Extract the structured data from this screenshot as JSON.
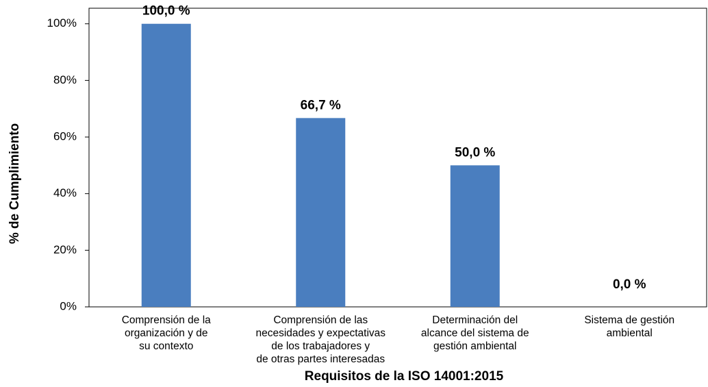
{
  "chart_data": {
    "type": "bar",
    "x_label": "Requisitos de la ISO 14001:2015",
    "y_label": "% de Cumplimiento",
    "categories": [
      "Comprensión de la\norganización y de\nsu contexto",
      "Comprensión de las\nnecesidades y expectativas\nde los trabajadores y\nde otras partes interesadas",
      "Determinación del\nalcance del sistema de\ngestión ambiental",
      "Sistema de gestión\nambiental"
    ],
    "values": [
      100,
      66.7,
      50,
      0
    ],
    "value_labels": [
      "100,0 %",
      "66,7 %",
      "50,0 %",
      "0,0 %"
    ],
    "color": "#4a7ebf",
    "ylim": [
      0,
      105.5
    ],
    "yticks": [
      {
        "value": 0,
        "label": "0%"
      },
      {
        "value": 20,
        "label": "20%"
      },
      {
        "value": 40,
        "label": "40%"
      },
      {
        "value": 60,
        "label": "60%"
      },
      {
        "value": 80,
        "label": "80%"
      },
      {
        "value": 100,
        "label": "100%"
      }
    ],
    "grid": false
  }
}
